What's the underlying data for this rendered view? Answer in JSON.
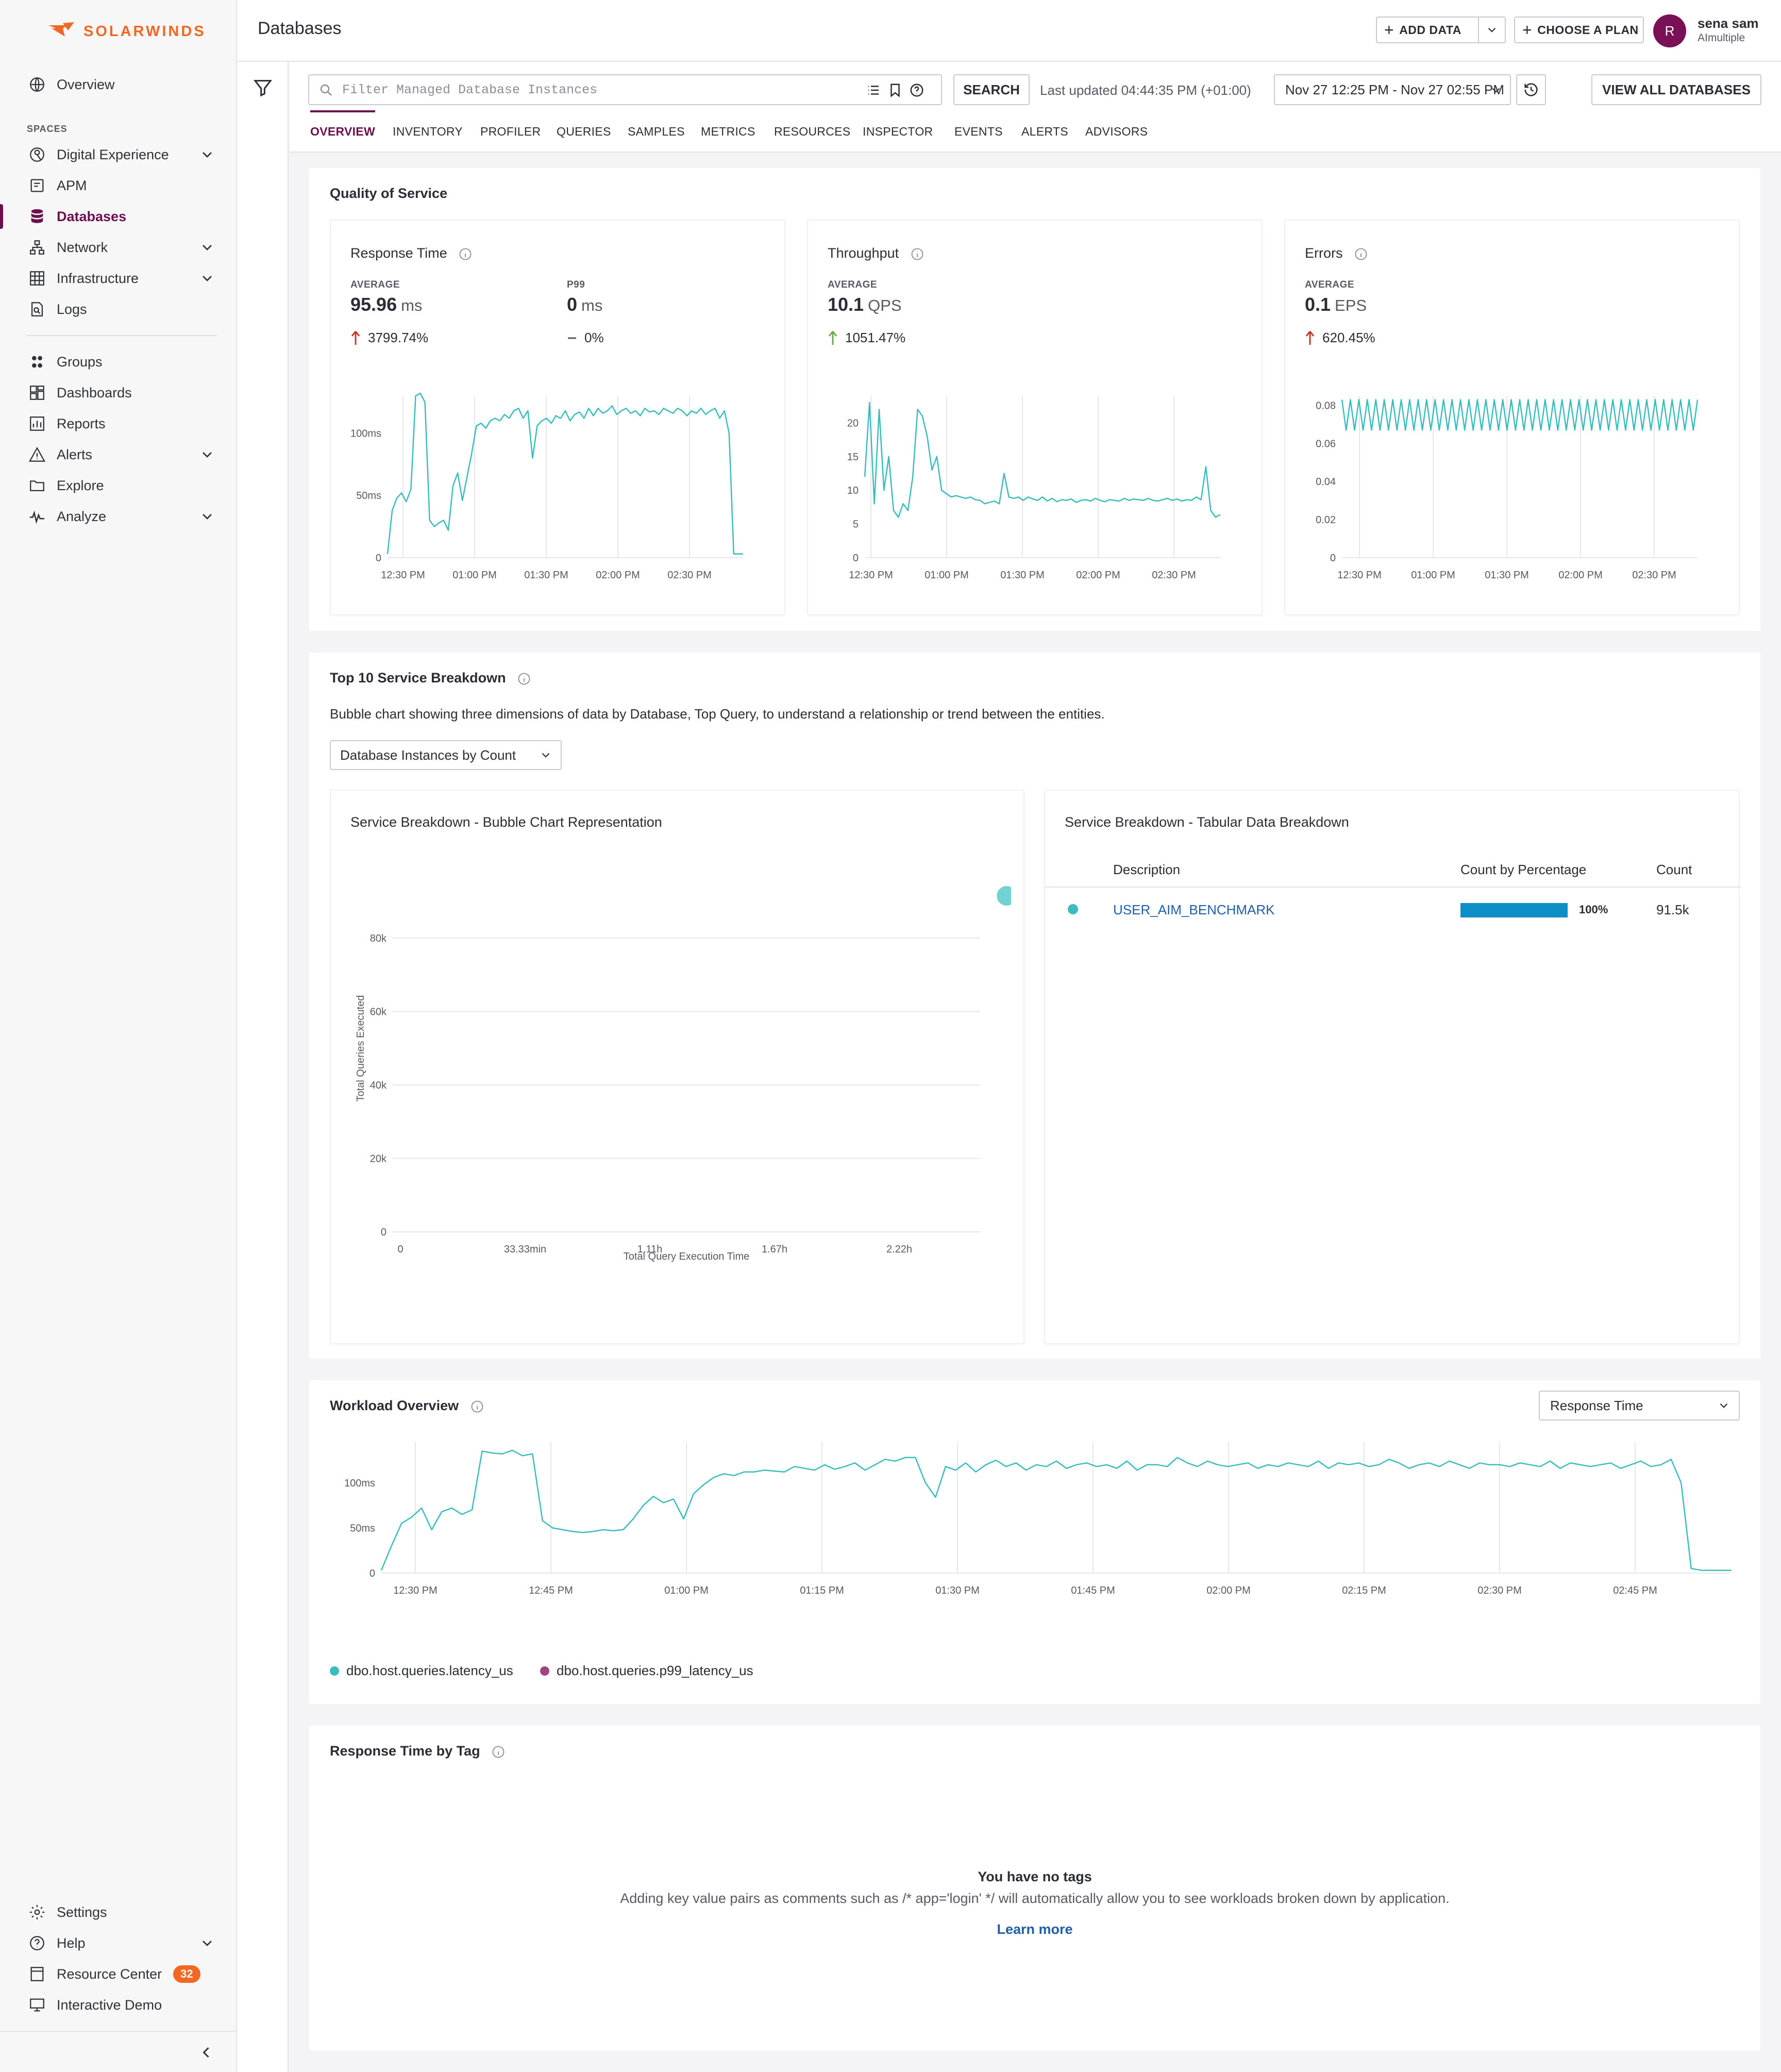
{
  "sidebar": {
    "brand": "SOLARWINDS",
    "top": [
      {
        "label": "Overview",
        "icon": "globe-icon"
      }
    ],
    "spaces_label": "SPACES",
    "spaces": [
      {
        "label": "Digital Experience",
        "icon": "digital-experience-icon",
        "expandable": true
      },
      {
        "label": "APM",
        "icon": "apm-icon",
        "expandable": false
      },
      {
        "label": "Databases",
        "icon": "database-icon",
        "expandable": false,
        "active": true
      },
      {
        "label": "Network",
        "icon": "network-icon",
        "expandable": true
      },
      {
        "label": "Infrastructure",
        "icon": "infrastructure-icon",
        "expandable": true
      },
      {
        "label": "Logs",
        "icon": "logs-icon",
        "expandable": false
      }
    ],
    "tools": [
      {
        "label": "Groups",
        "icon": "groups-icon",
        "expandable": false
      },
      {
        "label": "Dashboards",
        "icon": "dashboards-icon",
        "expandable": false
      },
      {
        "label": "Reports",
        "icon": "reports-icon",
        "expandable": false
      },
      {
        "label": "Alerts",
        "icon": "alerts-icon",
        "expandable": true
      },
      {
        "label": "Explore",
        "icon": "explore-icon",
        "expandable": false
      },
      {
        "label": "Analyze",
        "icon": "analyze-icon",
        "expandable": true
      }
    ],
    "bottom": [
      {
        "label": "Settings",
        "icon": "settings-icon"
      },
      {
        "label": "Help",
        "icon": "help-icon",
        "expandable": true
      },
      {
        "label": "Resource Center",
        "icon": "resource-center-icon",
        "badge": "32"
      },
      {
        "label": "Interactive Demo",
        "icon": "interactive-demo-icon"
      }
    ]
  },
  "header": {
    "title": "Databases",
    "add_data": "ADD DATA",
    "choose_plan": "CHOOSE A PLAN",
    "user_initial": "R",
    "user_name": "sena sam",
    "user_org": "AImultiple"
  },
  "toolbar": {
    "search_placeholder": "Filter Managed Database Instances",
    "search_value": "",
    "search_button": "SEARCH",
    "last_updated": "Last updated 04:44:35 PM (+01:00)",
    "date_range": "Nov 27 12:25 PM - Nov 27 02:55 PM",
    "view_all": "VIEW ALL DATABASES"
  },
  "tabs": [
    "OVERVIEW",
    "INVENTORY",
    "PROFILER",
    "QUERIES",
    "SAMPLES",
    "METRICS",
    "RESOURCES",
    "INSPECTOR",
    "EVENTS",
    "ALERTS",
    "ADVISORS"
  ],
  "active_tab": "OVERVIEW",
  "qos": {
    "title": "Quality of Service",
    "response_time": {
      "title": "Response Time",
      "avg_label": "AVERAGE",
      "avg_value": "95.96",
      "avg_unit": "ms",
      "avg_change": "3799.74%",
      "p99_label": "P99",
      "p99_value": "0",
      "p99_unit": "ms",
      "p99_change": "0%"
    },
    "throughput": {
      "title": "Throughput",
      "avg_label": "AVERAGE",
      "avg_value": "10.1",
      "avg_unit": "QPS",
      "avg_change": "1051.47%"
    },
    "errors": {
      "title": "Errors",
      "avg_label": "AVERAGE",
      "avg_value": "0.1",
      "avg_unit": "EPS",
      "avg_change": "620.45%"
    }
  },
  "breakdown": {
    "title": "Top 10 Service Breakdown",
    "description": "Bubble chart showing three dimensions of data by Database, Top Query, to understand a relationship or trend between the entities.",
    "select_value": "Database Instances by Count",
    "bubble_title": "Service Breakdown - Bubble Chart Representation",
    "table_title": "Service Breakdown - Tabular Data Breakdown",
    "table_headers": {
      "description": "Description",
      "pct": "Count by Percentage",
      "count": "Count"
    },
    "rows": [
      {
        "description": "USER_AIM_BENCHMARK",
        "pct_label": "100%",
        "pct_value": 100,
        "count": "91.5k"
      }
    ]
  },
  "workload": {
    "title": "Workload Overview",
    "select_value": "Response Time",
    "legend": [
      {
        "label": "dbo.host.queries.latency_us",
        "color": "#3bbdbd"
      },
      {
        "label": "dbo.host.queries.p99_latency_us",
        "color": "#a1457f"
      }
    ]
  },
  "tags": {
    "title": "Response Time by Tag",
    "empty_title": "You have no tags",
    "empty_desc": "Adding key value pairs as comments such as /* app='login' */ will automatically allow you to see workloads broken down by application.",
    "learn_more": "Learn more"
  },
  "colors": {
    "accent": "#6b0f4e",
    "brand": "#f26722",
    "series": "#3bbdbd",
    "series_p99": "#a1457f",
    "bar": "#0c8ec7",
    "link": "#1f5ea8",
    "up_red": "#c0392b",
    "up_green": "#6aa84f"
  },
  "chart_data": [
    {
      "id": "response_time",
      "type": "line",
      "title": "Response Time",
      "x_ticks": [
        "12:30 PM",
        "01:00 PM",
        "01:30 PM",
        "02:00 PM",
        "02:30 PM"
      ],
      "y_ticks": [
        "0",
        "50ms",
        "100ms"
      ],
      "ylim": [
        0,
        130
      ],
      "unit": "ms",
      "series": [
        {
          "values": [
            3,
            38,
            48,
            52,
            45,
            55,
            130,
            132,
            125,
            30,
            25,
            28,
            30,
            22,
            58,
            68,
            46,
            65,
            84,
            106,
            108,
            104,
            110,
            112,
            110,
            115,
            112,
            118,
            120,
            112,
            118,
            80,
            106,
            110,
            112,
            108,
            114,
            112,
            118,
            110,
            115,
            117,
            112,
            120,
            114,
            120,
            116,
            118,
            122,
            115,
            118,
            120,
            116,
            118,
            114,
            120,
            117,
            118,
            115,
            120,
            118,
            116,
            120,
            118,
            114,
            118,
            116,
            120,
            115,
            118,
            120,
            112,
            118,
            100,
            3,
            3,
            3
          ]
        }
      ]
    },
    {
      "id": "throughput",
      "type": "line",
      "title": "Throughput",
      "x_ticks": [
        "12:30 PM",
        "01:00 PM",
        "01:30 PM",
        "02:00 PM",
        "02:30 PM"
      ],
      "y_ticks": [
        "0",
        "5",
        "10",
        "15",
        "20"
      ],
      "ylim": [
        0,
        24
      ],
      "unit": "QPS",
      "series": [
        {
          "values": [
            12,
            23,
            8,
            22,
            10,
            15,
            7,
            6,
            8,
            7,
            12,
            22,
            21,
            18,
            13,
            15,
            10,
            9.5,
            9,
            9.2,
            9,
            8.8,
            9,
            8.6,
            8.5,
            8,
            8.2,
            8.4,
            8,
            12.5,
            9,
            8.8,
            9,
            8.5,
            9,
            8.7,
            8.5,
            9,
            8.4,
            8.8,
            8.3,
            8.6,
            8.5,
            8.7,
            8.2,
            8.5,
            8.6,
            8.4,
            8.8,
            8.5,
            8.3,
            8.6,
            8.5,
            8.4,
            8.8,
            8.5,
            8.7,
            8.6,
            8.5,
            8.8,
            8.5,
            8.4,
            8.6,
            8.8,
            8.5,
            8.7,
            8.4,
            8.6,
            8.5,
            9,
            8.6,
            13.5,
            7,
            6,
            6.4
          ]
        }
      ]
    },
    {
      "id": "errors",
      "type": "line",
      "title": "Errors",
      "x_ticks": [
        "12:30 PM",
        "01:00 PM",
        "01:30 PM",
        "02:00 PM",
        "02:30 PM"
      ],
      "y_ticks": [
        "0",
        "0.02",
        "0.04",
        "0.06",
        "0.08"
      ],
      "ylim": [
        0,
        0.085
      ],
      "unit": "EPS",
      "pattern": "alternating",
      "low": 0.067,
      "high": 0.083,
      "pulses": 42
    },
    {
      "id": "bubble",
      "type": "scatter",
      "title": "Service Breakdown - Bubble Chart Representation",
      "xlabel": "Total Query Execution Time",
      "ylabel": "Total Queries Executed",
      "x_ticks": [
        "0",
        "33.33min",
        "1.11h",
        "1.67h",
        "2.22h"
      ],
      "y_ticks": [
        "0",
        "20k",
        "40k",
        "60k",
        "80k"
      ],
      "ylim": [
        0,
        91500
      ],
      "series": [
        {
          "name": "USER_AIM_BENCHMARK",
          "points": [
            {
              "x_hours": 2.7,
              "y": 91500
            }
          ]
        }
      ]
    },
    {
      "id": "workload",
      "type": "line",
      "title": "Workload Overview",
      "x_ticks": [
        "12:30 PM",
        "12:45 PM",
        "01:00 PM",
        "01:15 PM",
        "01:30 PM",
        "01:45 PM",
        "02:00 PM",
        "02:15 PM",
        "02:30 PM",
        "02:45 PM"
      ],
      "y_ticks": [
        "0",
        "50ms",
        "100ms"
      ],
      "ylim": [
        0,
        145
      ],
      "unit": "ms",
      "series": [
        {
          "name": "dbo.host.queries.latency_us",
          "values": [
            3,
            30,
            55,
            62,
            72,
            48,
            68,
            72,
            65,
            70,
            135,
            133,
            132,
            136,
            130,
            132,
            58,
            50,
            48,
            46,
            45,
            46,
            48,
            47,
            48,
            60,
            75,
            85,
            78,
            82,
            60,
            88,
            98,
            106,
            110,
            108,
            112,
            112,
            114,
            113,
            112,
            118,
            116,
            114,
            120,
            115,
            118,
            122,
            114,
            120,
            126,
            124,
            128,
            128,
            100,
            84,
            118,
            114,
            122,
            112,
            120,
            125,
            118,
            122,
            114,
            120,
            118,
            124,
            116,
            120,
            122,
            118,
            120,
            116,
            124,
            114,
            120,
            120,
            118,
            128,
            122,
            118,
            124,
            120,
            118,
            120,
            122,
            116,
            120,
            118,
            122,
            120,
            118,
            124,
            116,
            122,
            120,
            122,
            118,
            120,
            126,
            122,
            116,
            120,
            122,
            118,
            124,
            120,
            116,
            122,
            120,
            120,
            118,
            122,
            120,
            118,
            124,
            116,
            122,
            120,
            118,
            120,
            122,
            116,
            120,
            124,
            118,
            120,
            126,
            100,
            5,
            3,
            3,
            3,
            3
          ]
        }
      ]
    }
  ]
}
